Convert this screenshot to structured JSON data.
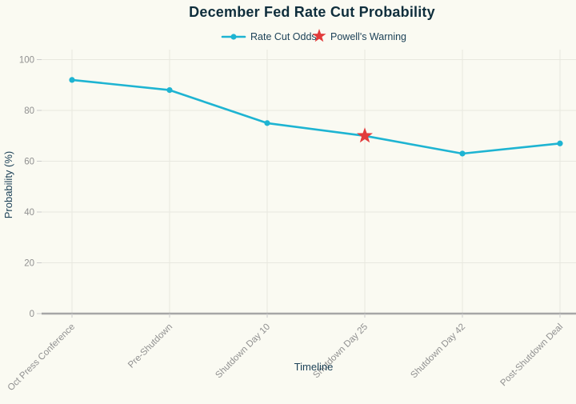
{
  "title": "December Fed Rate Cut Probability",
  "legend": {
    "items": [
      {
        "label": "Rate Cut Odds",
        "marker": "line-dot"
      },
      {
        "label": "Powell's Warning",
        "marker": "star"
      }
    ]
  },
  "axes": {
    "x_label": "Timeline",
    "y_label": "Probability (%)",
    "y_ticks": [
      0,
      20,
      40,
      60,
      80,
      100
    ]
  },
  "colors": {
    "background": "#fafaf2",
    "line": "#1eb4d2",
    "star": "#e23b3b",
    "title_text": "#0f2e3c",
    "label_text": "#1d4258",
    "tick_text": "#909090",
    "gridline": "#e8e8df",
    "axis_line": "#a6a6a6",
    "tick_mark": "#cccccc"
  },
  "chart_data": {
    "type": "line",
    "title": "December Fed Rate Cut Probability",
    "categories": [
      "Oct Press Conference",
      "Pre-Shutdown",
      "Shutdown Day 10",
      "Shutdown Day 25",
      "Shutdown Day 42",
      "Post-Shutdown Deal"
    ],
    "series": [
      {
        "name": "Rate Cut Odds",
        "values": [
          92,
          88,
          75,
          70,
          63,
          67
        ]
      }
    ],
    "annotations": [
      {
        "name": "Powell's Warning",
        "category": "Shutdown Day 25",
        "category_index": 3,
        "value": 70,
        "marker": "star"
      }
    ],
    "xlabel": "Timeline",
    "ylabel": "Probability (%)",
    "ylim": [
      0,
      100
    ],
    "y_tick_step": 20,
    "grid": true,
    "legend_position": "top-center"
  }
}
